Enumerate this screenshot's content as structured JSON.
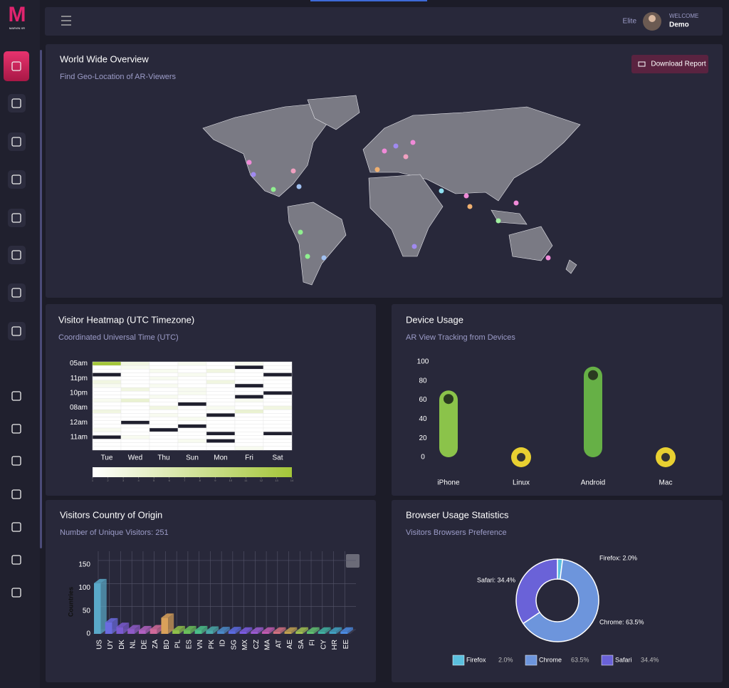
{
  "logo": {
    "letter": "M",
    "text": "MARVIN XR"
  },
  "header": {
    "status": "Elite",
    "welcome": "WELCOME",
    "user": "Demo"
  },
  "overview": {
    "title": "World Wide Overview",
    "subtitle": "Find Geo-Location of AR-Viewers",
    "button": "Download Report"
  },
  "chart_data": [
    {
      "type": "heatmap",
      "title": "Visitor Heatmap (UTC Timezone)",
      "subtitle": "Coordinated Universal Time (UTC)",
      "x": [
        "Tue",
        "Wed",
        "Thu",
        "Sun",
        "Mon",
        "Fri",
        "Sat"
      ],
      "y": [
        "05am",
        null,
        null,
        null,
        "11pm",
        null,
        null,
        null,
        "10pm",
        null,
        null,
        null,
        "08am",
        null,
        null,
        null,
        "12am",
        null,
        null,
        null,
        "11am",
        null,
        null,
        null
      ],
      "z": [
        [
          14,
          3,
          1,
          2,
          1,
          2,
          1
        ],
        [
          1,
          2,
          1,
          1,
          1,
          null,
          1
        ],
        [
          1,
          1,
          2,
          1,
          3,
          1,
          1
        ],
        [
          null,
          1,
          1,
          2,
          1,
          1,
          null
        ],
        [
          1,
          1,
          2,
          1,
          1,
          1,
          1
        ],
        [
          3,
          1,
          1,
          1,
          3,
          1,
          1
        ],
        [
          2,
          1,
          2,
          1,
          1,
          null,
          1
        ],
        [
          1,
          3,
          1,
          2,
          1,
          1,
          1
        ],
        [
          1,
          1,
          1,
          2,
          1,
          1,
          null
        ],
        [
          1,
          1,
          2,
          1,
          1,
          null,
          1
        ],
        [
          2,
          4,
          1,
          1,
          1,
          2,
          1
        ],
        [
          1,
          1,
          1,
          null,
          1,
          1,
          1
        ],
        [
          1,
          1,
          3,
          1,
          2,
          1,
          3
        ],
        [
          3,
          1,
          1,
          1,
          1,
          4,
          1
        ],
        [
          1,
          1,
          2,
          1,
          null,
          1,
          1
        ],
        [
          1,
          1,
          1,
          2,
          1,
          1,
          1
        ],
        [
          1,
          null,
          1,
          1,
          1,
          1,
          1
        ],
        [
          1,
          1,
          1,
          null,
          1,
          1,
          1
        ],
        [
          2,
          1,
          null,
          1,
          1,
          1,
          1
        ],
        [
          1,
          1,
          1,
          1,
          null,
          1,
          null
        ],
        [
          null,
          2,
          1,
          1,
          1,
          1,
          1
        ],
        [
          1,
          1,
          1,
          2,
          null,
          1,
          1
        ],
        [
          1,
          1,
          1,
          1,
          1,
          1,
          1
        ],
        [
          1,
          1,
          1,
          1,
          1,
          2,
          1
        ]
      ],
      "zlim": [
        1,
        14
      ],
      "colorbar_ticks": [
        1,
        2,
        3,
        4,
        5,
        6,
        7,
        8,
        9,
        10,
        11,
        12,
        13,
        14
      ],
      "color_low": "#ffffff",
      "color_high": "#a4c639"
    },
    {
      "type": "bar",
      "title": "Device Usage",
      "subtitle": "AR View Tracking from Devices",
      "categories": [
        "iPhone",
        "Linux",
        "Android",
        "Mac"
      ],
      "values": [
        70,
        0,
        95,
        0
      ],
      "colors": [
        "#8bc34a",
        "#e8d031",
        "#66b046",
        "#e8d031"
      ],
      "ylim": [
        0,
        100
      ],
      "yticks": [
        0,
        20,
        40,
        60,
        80,
        100
      ]
    },
    {
      "type": "bar3d",
      "title": "Visitors Country of Origin",
      "subtitle": "Number of Unique Visitors: 251",
      "y_label": "Countries",
      "categories": [
        "US",
        "UY",
        "DK",
        "NL",
        "DE",
        "ZA",
        "BD",
        "PL",
        "ES",
        "VN",
        "PK",
        "ID",
        "SG",
        "MX",
        "CZ",
        "MA",
        "AT",
        "AE",
        "SA",
        "FI",
        "CY",
        "HR",
        "EE"
      ],
      "values": [
        110,
        25,
        15,
        10,
        8,
        10,
        35,
        8,
        8,
        8,
        7,
        6,
        6,
        5,
        5,
        5,
        5,
        5,
        5,
        5,
        5,
        5,
        5
      ],
      "colors": [
        "#5aa9c9",
        "#6b6be0",
        "#7a5ad0",
        "#8e5ac8",
        "#b060c0",
        "#d06a9a",
        "#d9a15a",
        "#8fbf4a",
        "#6abf5a",
        "#4abf8a",
        "#4aa9a9",
        "#4a8ac9",
        "#5a6ae0",
        "#7a5ae0",
        "#9a5ad0",
        "#c05ab0",
        "#d07080",
        "#c0a050",
        "#a0c050",
        "#60c070",
        "#40b0a0",
        "#40a0c0",
        "#4a8ae0"
      ],
      "ylim": [
        0,
        170
      ],
      "yticks": [
        0,
        50,
        100,
        150
      ]
    },
    {
      "type": "pie",
      "title": "Browser Usage Statistics",
      "subtitle": "Visitors Browsers Preference",
      "categories": [
        "Firefox",
        "Chrome",
        "Safari"
      ],
      "values": [
        2.0,
        63.5,
        34.4
      ],
      "value_labels": [
        "2.0%",
        "63.5%",
        "34.4%"
      ],
      "data_labels": [
        "Firefox: 2.0%",
        "Chrome: 63.5%",
        "Safari: 34.4%"
      ],
      "colors": [
        "#5bc0de",
        "#6d95dc",
        "#6a62d8"
      ]
    }
  ]
}
